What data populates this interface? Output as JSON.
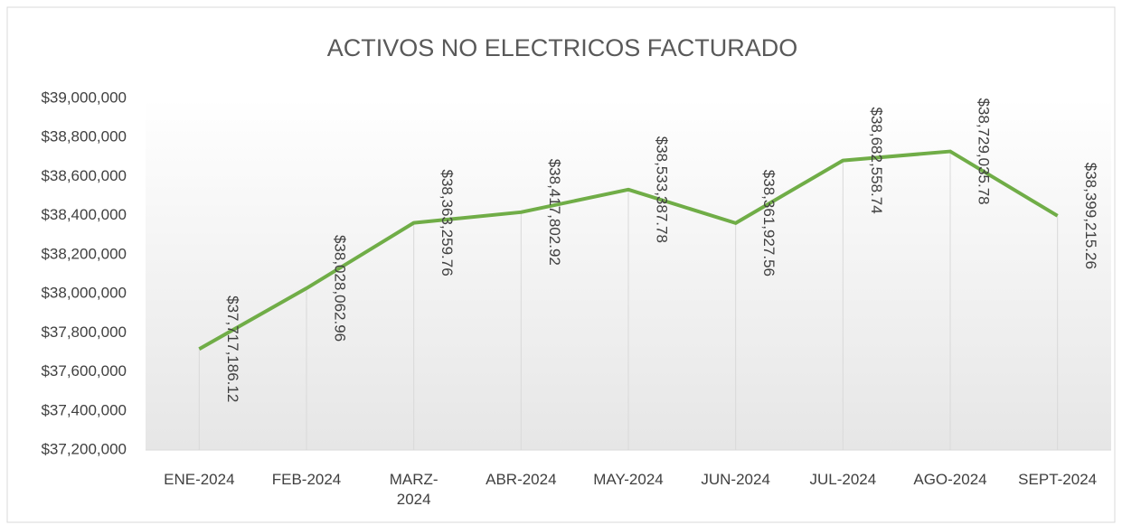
{
  "chart_data": {
    "type": "line",
    "title": "ACTIVOS NO ELECTRICOS FACTURADO",
    "categories": [
      "ENE-2024",
      "FEB-2024",
      "MARZ-\n2024",
      "ABR-2024",
      "MAY-2024",
      "JUN-2024",
      "JUL-2024",
      "AGO-2024",
      "SEPT-2024"
    ],
    "series": [
      {
        "name": "ACTIVOS NO ELECTRICOS FACTURADO",
        "color": "#70ad47",
        "values": [
          37717186.12,
          38028062.96,
          38363259.76,
          38417802.92,
          38533387.78,
          38361927.56,
          38682558.74,
          38729035.78,
          38399215.26
        ],
        "value_labels": [
          "$37,717,186.12",
          "$38,028,062.96",
          "$38,363,259.76",
          "$38,417,802.92",
          "$38,533,387.78",
          "$38,361,927.56",
          "$38,682,558.74",
          "$38,729,035.78",
          "$38,399,215.26"
        ]
      }
    ],
    "ylim": [
      37200000,
      39000000
    ],
    "yticks": [
      {
        "value": 37200000,
        "label": "$37,200,000"
      },
      {
        "value": 37400000,
        "label": "$37,400,000"
      },
      {
        "value": 37600000,
        "label": "$37,600,000"
      },
      {
        "value": 37800000,
        "label": "$37,800,000"
      },
      {
        "value": 38000000,
        "label": "$38,000,000"
      },
      {
        "value": 38200000,
        "label": "$38,200,000"
      },
      {
        "value": 38400000,
        "label": "$38,400,000"
      },
      {
        "value": 38600000,
        "label": "$38,600,000"
      },
      {
        "value": 38800000,
        "label": "$38,800,000"
      },
      {
        "value": 39000000,
        "label": "$39,000,000"
      }
    ],
    "drop_lines": true
  }
}
